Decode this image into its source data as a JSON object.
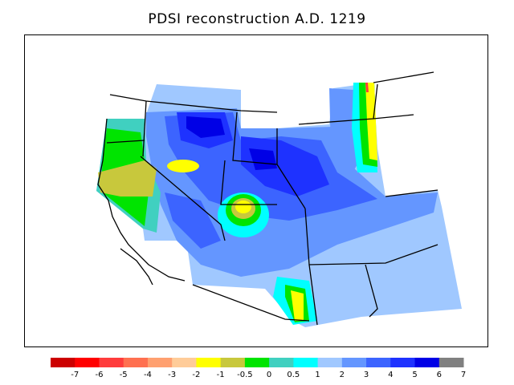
{
  "map": {
    "title": "PDSI reconstruction A.D. 1219",
    "colors": {
      "map_background": "#ffffff",
      "boundary": "#000000"
    }
  },
  "legend": {
    "tick_labels": [
      "-7",
      "-6",
      "-5",
      "-4",
      "-3",
      "-2",
      "-1",
      "-0.5",
      "0",
      "0.5",
      "1",
      "2",
      "3",
      "4",
      "5",
      "6",
      "7"
    ],
    "bins": [
      {
        "color": "#cc0000"
      },
      {
        "color": "#ff0000"
      },
      {
        "color": "#ff3c3c"
      },
      {
        "color": "#ff7050"
      },
      {
        "color": "#ffa070"
      },
      {
        "color": "#ffcc99"
      },
      {
        "color": "#ffff00"
      },
      {
        "color": "#c8c83c"
      },
      {
        "color": "#00e400"
      },
      {
        "color": "#40d0c0"
      },
      {
        "color": "#00ffff"
      },
      {
        "color": "#a0c8ff"
      },
      {
        "color": "#6496ff"
      },
      {
        "color": "#3c64ff"
      },
      {
        "color": "#1e32ff"
      },
      {
        "color": "#0000e6"
      },
      {
        "color": "#808080"
      }
    ]
  }
}
